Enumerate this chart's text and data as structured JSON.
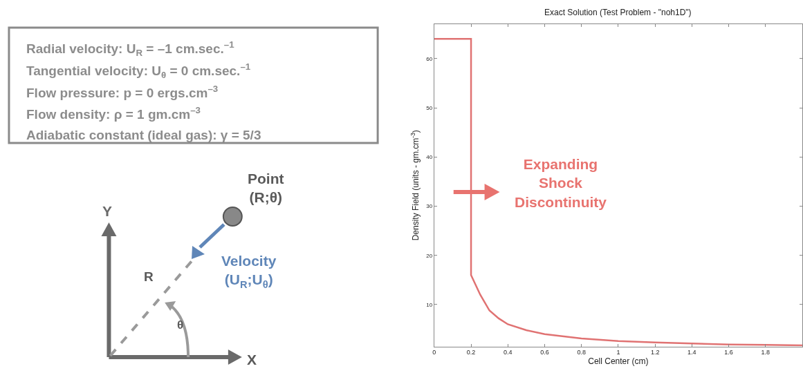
{
  "chart_data": [
    {
      "type": "other",
      "annotations": [
        "Radial velocity: U$_{R}$ = –1 cm.sec.$^{–1}$",
        "Tangential velocity: U$_{θ}$ = 0 cm.sec.$^{–1}$",
        "Flow pressure: p = 0 ergs.cm$^{–3}$",
        "Flow density: ρ = 1 gm.cm$^{–3}$",
        "Adiabatic constant (ideal gas): γ = 5/3",
        "Point\n(R;θ)",
        "Velocity\n(U$_{R}$;U$_{θ}$)",
        "R",
        "θ",
        "Y",
        "X"
      ]
    },
    {
      "type": "line",
      "title": "Exact Solution (Test Problem - \"noh1D\")",
      "xlabel": "Cell Center (cm)",
      "ylabel": "Density Field (units - gm.cm$^{-3}$)",
      "series": [
        {
          "color": "#e07272",
          "x": [
            0,
            0.2,
            0.2,
            0.25,
            0.3,
            0.35,
            0.4,
            0.5,
            0.6,
            0.8,
            1.0,
            1.2,
            1.4,
            1.6,
            1.8,
            2.0
          ],
          "values": [
            64,
            64,
            16,
            12,
            8.8,
            7.2,
            6,
            4.8,
            4,
            3.1,
            2.6,
            2.3,
            2.1,
            1.9,
            1.8,
            1.7
          ]
        }
      ],
      "xlim": [
        0,
        2
      ],
      "xticks": [
        0,
        0.2,
        0.4,
        0.6,
        0.8,
        1,
        1.2,
        1.4,
        1.6,
        1.8
      ],
      "ylim": [
        1.5,
        67
      ],
      "yticks": [
        10,
        20,
        30,
        40,
        50,
        60
      ],
      "marker": "none",
      "line_style": "solid",
      "annotations": [
        "Expanding\nShock\nDiscontinuity"
      ]
    }
  ]
}
